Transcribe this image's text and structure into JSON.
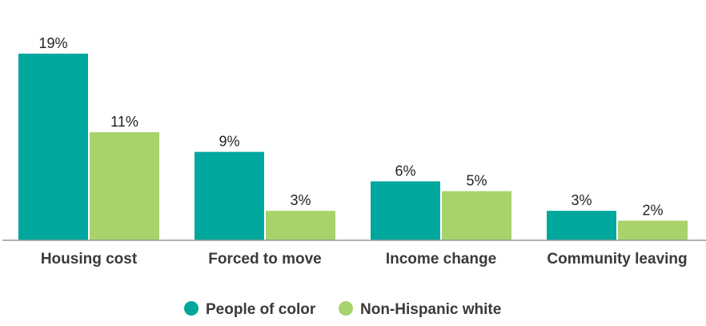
{
  "chart_data": {
    "type": "bar",
    "categories": [
      "Housing cost",
      "Forced to move",
      "Income change",
      "Community leaving"
    ],
    "series": [
      {
        "name": "People of color",
        "values": [
          19,
          9,
          6,
          3
        ],
        "labels": [
          "19%",
          "9%",
          "6%",
          "3%"
        ],
        "color": "#00a79d"
      },
      {
        "name": "Non-Hispanic white",
        "values": [
          11,
          3,
          5,
          2
        ],
        "labels": [
          "11%",
          "3%",
          "5%",
          "2%"
        ],
        "color": "#a8d26a"
      }
    ],
    "title": "",
    "xlabel": "",
    "ylabel": "",
    "ylim": [
      0,
      19
    ],
    "grid": false,
    "legend_position": "bottom-center",
    "axis_color": "#999999"
  }
}
